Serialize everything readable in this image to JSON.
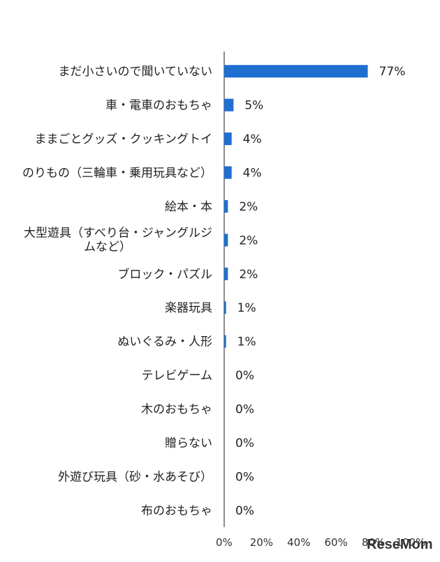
{
  "chart_data": {
    "type": "bar",
    "orientation": "horizontal",
    "categories": [
      "まだ小さいので聞いていない",
      "車・電車のおもちゃ",
      "ままごとグッズ・クッキングトイ",
      "のりもの（三輪車・乗用玩具など）",
      "絵本・本",
      "大型遊具（すべり台・ジャングルジムなど）",
      "ブロック・パズル",
      "楽器玩具",
      "ぬいぐるみ・人形",
      "テレビゲーム",
      "木のおもちゃ",
      "贈らない",
      "外遊び玩具（砂・水あそび）",
      "布のおもちゃ"
    ],
    "values": [
      77,
      5,
      4,
      4,
      2,
      2,
      2,
      1,
      1,
      0,
      0,
      0,
      0,
      0
    ],
    "value_labels": [
      "77%",
      "5%",
      "4%",
      "4%",
      "2%",
      "2%",
      "2%",
      "1%",
      "1%",
      "0%",
      "0%",
      "0%",
      "0%",
      "0%"
    ],
    "xlim": [
      0,
      100
    ],
    "x_ticks": [
      "0%",
      "20%",
      "40%",
      "60%",
      "80%",
      "100%"
    ],
    "bar_color": "#1f6fd1",
    "grid": false
  },
  "watermark": "ReseMom"
}
